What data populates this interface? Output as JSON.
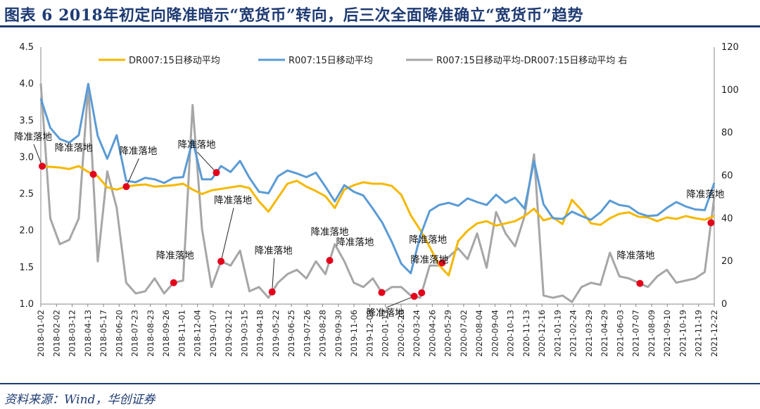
{
  "title": "图表 6   2018年初定向降准暗示“宽货币”转向，后三次全面降准确立“宽货币”趋势",
  "source": "资料来源：Wind，华创证券",
  "colors": {
    "dr007": "#f5b800",
    "r007": "#5b9bd5",
    "spread": "#a6a6a6",
    "marker": "#e3001b",
    "frame": "#1f3b73"
  },
  "chart_data": {
    "type": "line",
    "title": "2018年初定向降准暗示“宽货币”转向，后三次全面降准确立“宽货币”趋势",
    "x_labels": [
      "2018-01-02",
      "2018-02-02",
      "2018-03-12",
      "2018-04-13",
      "2018-05-17",
      "2018-06-20",
      "2018-07-23",
      "2018-08-23",
      "2018-09-26",
      "2018-11-01",
      "2018-12-04",
      "2019-01-07",
      "2019-02-12",
      "2019-03-15",
      "2019-04-18",
      "2019-05-22",
      "2019-06-25",
      "2019-07-26",
      "2019-08-28",
      "2019-09-30",
      "2019-11-06",
      "2019-12-09",
      "2020-01-13",
      "2020-02-20",
      "2020-03-24",
      "2020-04-26",
      "2020-05-29",
      "2020-07-02",
      "2020-08-04",
      "2020-09-04",
      "2020-10-13",
      "2020-11-13",
      "2020-12-16",
      "2021-01-19",
      "2021-02-24",
      "2021-03-29",
      "2021-04-29",
      "2021-06-03",
      "2021-07-07",
      "2021-08-09",
      "2021-09-10",
      "2021-10-19",
      "2021-11-19",
      "2021-12-22"
    ],
    "y_left": {
      "min": 1.0,
      "max": 4.5,
      "ticks": [
        "1.0",
        "1.5",
        "2.0",
        "2.5",
        "3.0",
        "3.5",
        "4.0",
        "4.5"
      ]
    },
    "y_right": {
      "min": 0,
      "max": 120,
      "ticks": [
        "0",
        "20",
        "40",
        "60",
        "80",
        "100",
        "120"
      ]
    },
    "legend": [
      "DR007:15日移动平均",
      "R007:15日移动平均",
      "R007:15日移动平均-DR007:15日移动平均 右"
    ],
    "series": [
      {
        "name": "DR007:15日移动平均",
        "axis": "left",
        "values": [
          2.88,
          2.87,
          2.86,
          2.84,
          2.88,
          2.8,
          2.74,
          2.59,
          2.56,
          2.6,
          2.62,
          2.63,
          2.6,
          2.61,
          2.62,
          2.64,
          2.56,
          2.5,
          2.55,
          2.57,
          2.59,
          2.61,
          2.58,
          2.4,
          2.26,
          2.45,
          2.64,
          2.68,
          2.6,
          2.54,
          2.47,
          2.31,
          2.56,
          2.62,
          2.66,
          2.64,
          2.64,
          2.61,
          2.49,
          2.21,
          2.01,
          1.78,
          1.53,
          1.39,
          1.86,
          2.0,
          2.1,
          2.13,
          2.07,
          2.1,
          2.13,
          2.2,
          2.3,
          2.14,
          2.18,
          2.09,
          2.42,
          2.28,
          2.1,
          2.08,
          2.17,
          2.23,
          2.25,
          2.19,
          2.18,
          2.13,
          2.18,
          2.16,
          2.2,
          2.17,
          2.15,
          2.2
        ]
      },
      {
        "name": "R007:15日移动平均",
        "axis": "left",
        "values": [
          3.8,
          3.4,
          3.25,
          3.2,
          3.3,
          4.0,
          3.29,
          2.98,
          3.3,
          2.68,
          2.66,
          2.72,
          2.7,
          2.65,
          2.72,
          2.73,
          3.23,
          2.7,
          2.7,
          2.88,
          2.8,
          2.95,
          2.72,
          2.53,
          2.51,
          2.74,
          2.82,
          2.78,
          2.73,
          2.79,
          2.6,
          2.4,
          2.62,
          2.53,
          2.48,
          2.3,
          2.11,
          1.85,
          1.55,
          1.42,
          1.93,
          2.27,
          2.35,
          2.38,
          2.34,
          2.44,
          2.39,
          2.35,
          2.49,
          2.38,
          2.45,
          2.3,
          2.95,
          2.36,
          2.17,
          2.16,
          2.26,
          2.2,
          2.15,
          2.25,
          2.41,
          2.35,
          2.33,
          2.24,
          2.2,
          2.21,
          2.31,
          2.39,
          2.33,
          2.29,
          2.28,
          2.65
        ]
      },
      {
        "name": "R007:15日移动平均-DR007:15日移动平均 右",
        "axis": "right",
        "values": [
          103,
          40,
          28,
          30,
          40,
          102,
          20,
          62,
          45,
          10,
          5,
          6,
          12,
          5,
          10,
          11,
          93,
          35,
          8,
          20,
          18,
          25,
          6,
          8,
          3,
          10,
          14,
          16,
          12,
          20,
          14,
          28,
          20,
          10,
          8,
          12,
          5,
          8,
          8,
          4,
          3,
          18,
          18,
          22,
          26,
          21,
          33,
          17,
          43,
          33,
          27,
          41,
          70,
          4,
          3,
          4,
          1,
          8,
          10,
          9,
          24,
          13,
          12,
          10,
          8,
          13,
          16,
          10,
          11,
          12,
          15,
          50
        ]
      }
    ],
    "annotations": [
      {
        "text": "降准落地",
        "series": 0,
        "x_date": "2018-04-25"
      },
      {
        "text": "降准落地",
        "series": 0,
        "x_date": "2018-01-05"
      },
      {
        "text": "降准落地",
        "series": 0,
        "x_date": "2018-07-05"
      },
      {
        "text": "降准落地",
        "series": 2,
        "x_date": "2018-10-15"
      },
      {
        "text": "降准落地",
        "series": 1,
        "x_date": "2019-01-15"
      },
      {
        "text": "降准落地",
        "series": 2,
        "x_date": "2019-01-25"
      },
      {
        "text": "降准落地",
        "series": 2,
        "x_date": "2019-05-15"
      },
      {
        "text": "降准落地",
        "series": 2,
        "x_date": "2019-09-16"
      },
      {
        "text": "降准落地",
        "series": 2,
        "x_date": "2020-01-06"
      },
      {
        "text": "降准落地",
        "series": 2,
        "x_date": "2020-03-16"
      },
      {
        "text": "降准落地",
        "series": 2,
        "x_date": "2020-04-01"
      },
      {
        "text": "降准落地",
        "series": 2,
        "x_date": "2020-05-15"
      },
      {
        "text": "降准落地",
        "series": 2,
        "x_date": "2021-07-15"
      },
      {
        "text": "降准落地",
        "series": 2,
        "x_date": "2021-12-15"
      }
    ]
  }
}
